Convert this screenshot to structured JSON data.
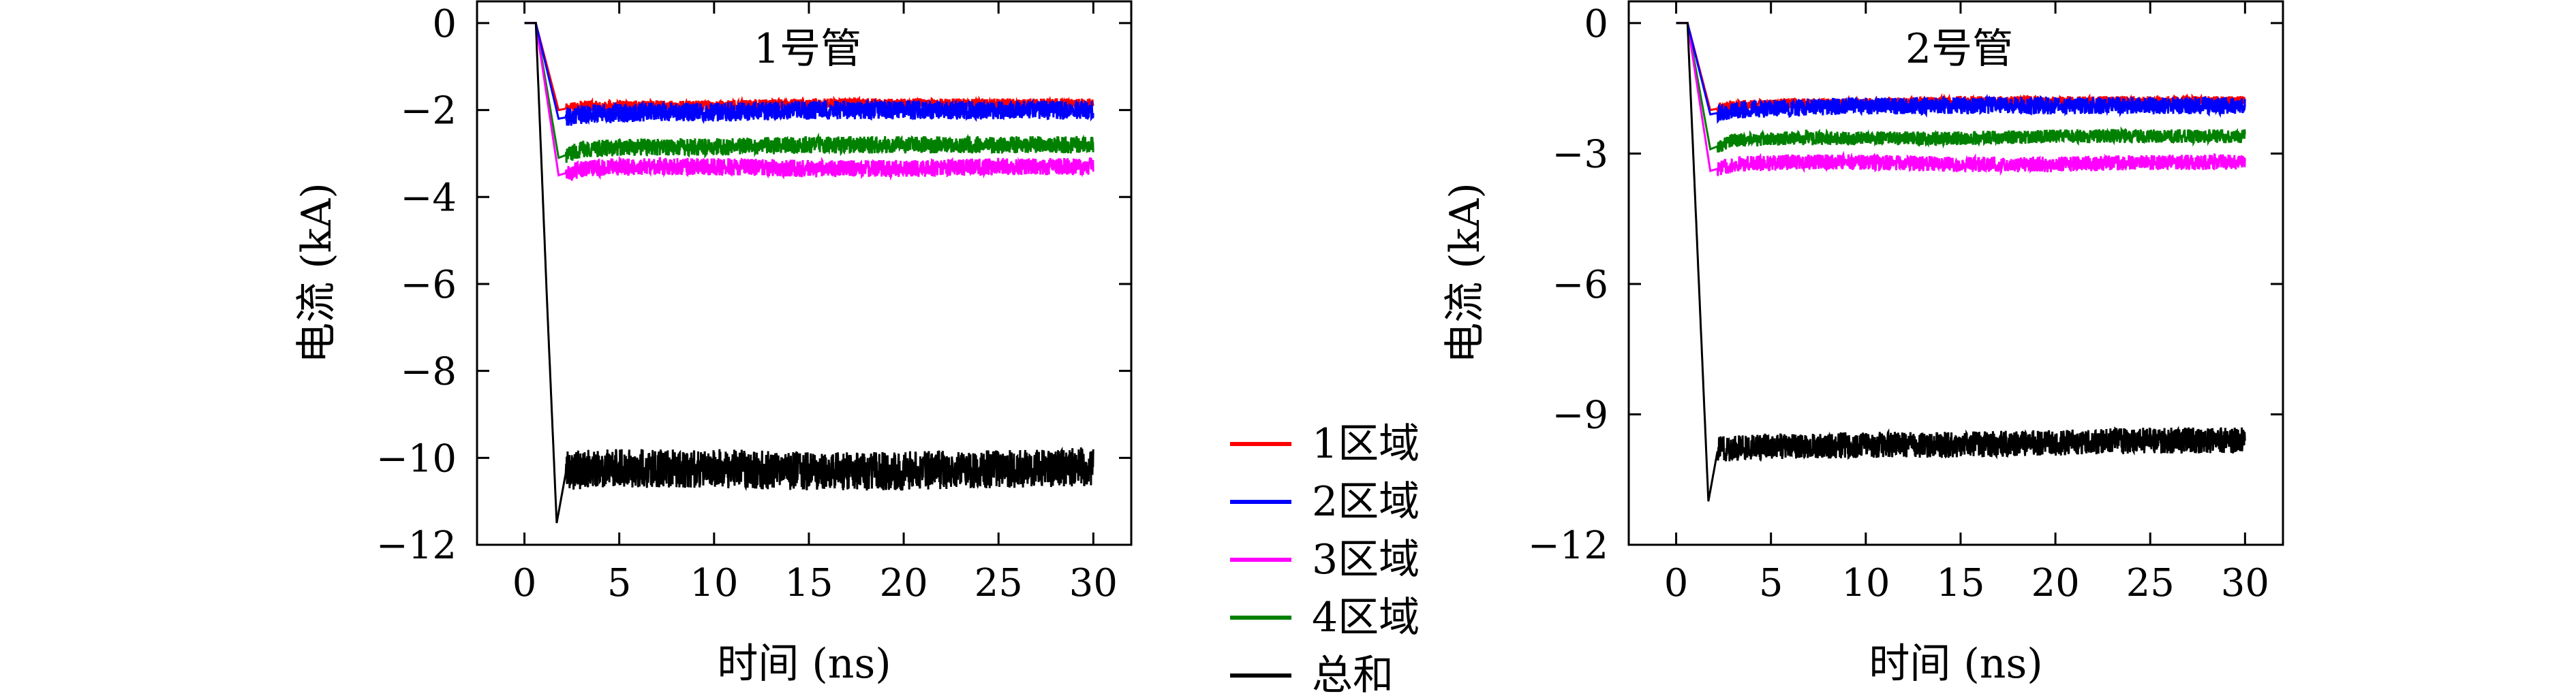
{
  "legend": [
    {
      "label": "1区域",
      "color": "#ff0000"
    },
    {
      "label": "2区域",
      "color": "#0000ff"
    },
    {
      "label": "3区域",
      "color": "#ff00ff"
    },
    {
      "label": "4区域",
      "color": "#008000"
    },
    {
      "label": "总和",
      "color": "#000000"
    }
  ],
  "chart_data": [
    {
      "type": "line",
      "title": "1号管",
      "xlabel": "时间 (ns)",
      "ylabel": "电流 (kA)",
      "xlim": [
        -2.5,
        32
      ],
      "ylim": [
        -12,
        0.5
      ],
      "xticks": [
        0,
        5,
        10,
        15,
        20,
        25,
        30
      ],
      "yticks": [
        0,
        -2,
        -4,
        -6,
        -8,
        -10,
        -12
      ],
      "grid": false,
      "series": [
        {
          "name": "1区域",
          "color": "#ff0000",
          "x": [
            0,
            0.6,
            1.8,
            3,
            6,
            10,
            15,
            20,
            25,
            30
          ],
          "y": [
            0,
            0,
            -2.0,
            -1.9,
            -1.9,
            -1.9,
            -1.85,
            -1.85,
            -1.85,
            -1.85
          ],
          "noise": 0.12
        },
        {
          "name": "2区域",
          "color": "#0000ff",
          "x": [
            0,
            0.6,
            1.8,
            3,
            6,
            10,
            15,
            20,
            25,
            30
          ],
          "y": [
            0,
            0,
            -2.2,
            -2.1,
            -2.05,
            -2.05,
            -2.0,
            -2.0,
            -2.0,
            -2.0
          ],
          "noise": 0.22
        },
        {
          "name": "3区域",
          "color": "#ff00ff",
          "x": [
            0,
            0.6,
            1.8,
            3,
            6,
            10,
            15,
            20,
            25,
            30
          ],
          "y": [
            0,
            0,
            -3.5,
            -3.35,
            -3.3,
            -3.3,
            -3.35,
            -3.35,
            -3.3,
            -3.3
          ],
          "noise": 0.2
        },
        {
          "name": "4区域",
          "color": "#008000",
          "x": [
            0,
            0.6,
            1.8,
            3,
            6,
            10,
            15,
            20,
            25,
            30
          ],
          "y": [
            0,
            0,
            -3.1,
            -2.9,
            -2.85,
            -2.85,
            -2.8,
            -2.8,
            -2.8,
            -2.8
          ],
          "noise": 0.2
        },
        {
          "name": "总和",
          "color": "#000000",
          "x": [
            0,
            0.6,
            1.2,
            1.7,
            2.2,
            4,
            10,
            15,
            20,
            25,
            30
          ],
          "y": [
            0,
            0,
            -6.5,
            -11.5,
            -10.3,
            -10.25,
            -10.25,
            -10.3,
            -10.3,
            -10.25,
            -10.2
          ],
          "noise": 0.45
        }
      ]
    },
    {
      "type": "line",
      "title": "2号管",
      "xlabel": "时间 (ns)",
      "ylabel": "电流 (kA)",
      "xlim": [
        -2.5,
        32
      ],
      "ylim": [
        -12,
        0.5
      ],
      "xticks": [
        0,
        5,
        10,
        15,
        20,
        25,
        30
      ],
      "yticks": [
        0,
        -3,
        -6,
        -9,
        -12
      ],
      "grid": false,
      "series": [
        {
          "name": "1区域",
          "color": "#ff0000",
          "x": [
            0,
            0.6,
            1.8,
            3,
            6,
            10,
            15,
            20,
            25,
            30
          ],
          "y": [
            0,
            0,
            -2.0,
            -1.9,
            -1.85,
            -1.85,
            -1.8,
            -1.8,
            -1.8,
            -1.8
          ],
          "noise": 0.12
        },
        {
          "name": "2区域",
          "color": "#0000ff",
          "x": [
            0,
            0.6,
            1.8,
            3,
            6,
            10,
            15,
            20,
            25,
            30
          ],
          "y": [
            0,
            0,
            -2.1,
            -2.0,
            -1.95,
            -1.9,
            -1.9,
            -1.9,
            -1.9,
            -1.9
          ],
          "noise": 0.2
        },
        {
          "name": "3区域",
          "color": "#ff00ff",
          "x": [
            0,
            0.6,
            1.8,
            3,
            6,
            10,
            15,
            20,
            25,
            30
          ],
          "y": [
            0,
            0,
            -3.4,
            -3.25,
            -3.2,
            -3.2,
            -3.25,
            -3.25,
            -3.2,
            -3.2
          ],
          "noise": 0.18
        },
        {
          "name": "4区域",
          "color": "#008000",
          "x": [
            0,
            0.6,
            1.8,
            3,
            6,
            10,
            15,
            20,
            25,
            30
          ],
          "y": [
            0,
            0,
            -2.9,
            -2.7,
            -2.65,
            -2.65,
            -2.65,
            -2.6,
            -2.6,
            -2.6
          ],
          "noise": 0.16
        },
        {
          "name": "总和",
          "color": "#000000",
          "x": [
            0,
            0.6,
            1.2,
            1.7,
            2.2,
            4,
            10,
            15,
            20,
            25,
            30
          ],
          "y": [
            0,
            0,
            -6.0,
            -11.0,
            -9.8,
            -9.75,
            -9.7,
            -9.7,
            -9.65,
            -9.6,
            -9.6
          ],
          "noise": 0.3
        }
      ]
    }
  ]
}
